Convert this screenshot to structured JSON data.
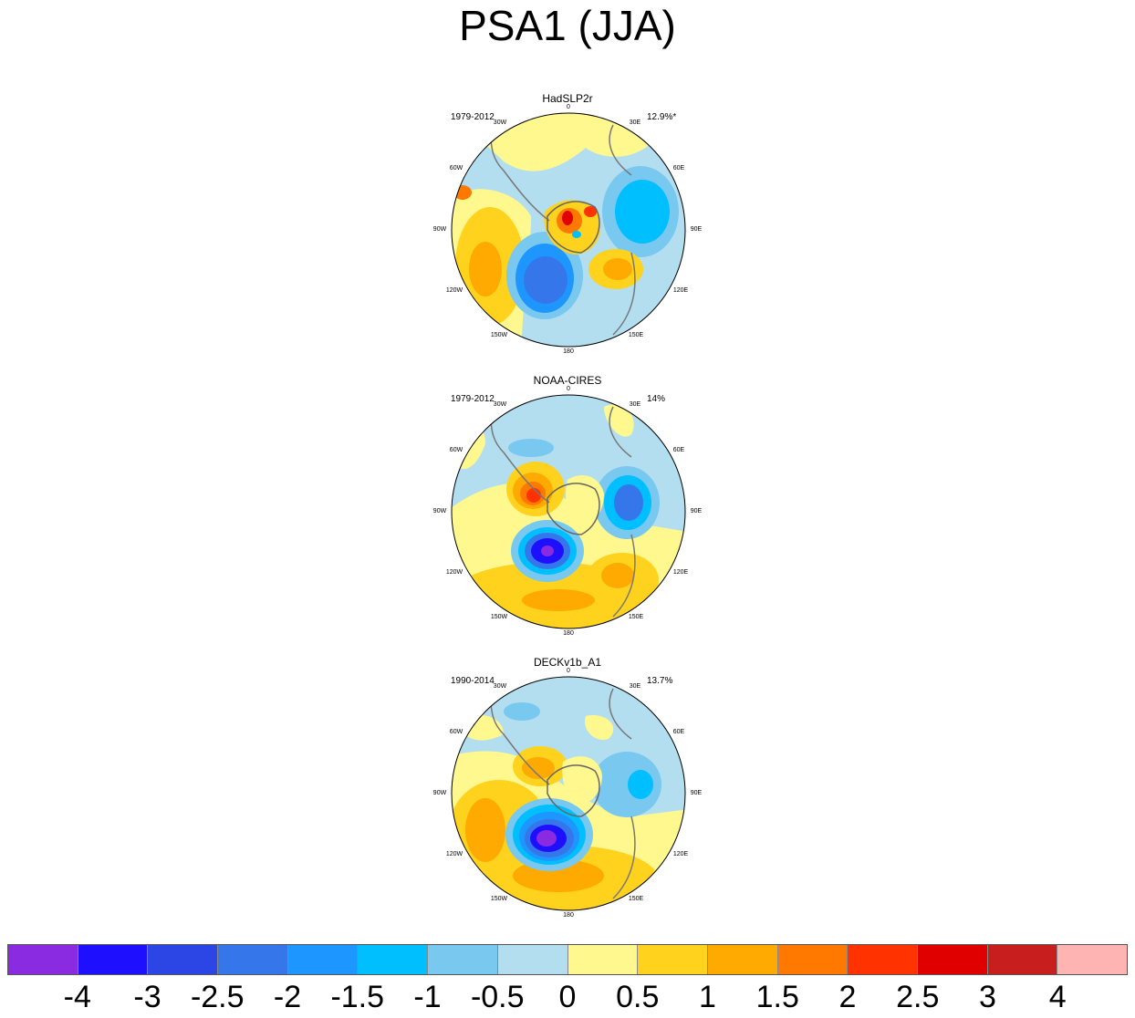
{
  "title": "PSA1 (JJA)",
  "panels": [
    {
      "name": "HadSLP2r",
      "years": "1979-2012",
      "pct": "12.9%*"
    },
    {
      "name": "NOAA-CIRES",
      "years": "1979-2012",
      "pct": "14%"
    },
    {
      "name": "DECKv1b_A1",
      "years": "1990-2014",
      "pct": "13.7%"
    }
  ],
  "lon_labels": {
    "l0": "0",
    "l30e": "30E",
    "l60e": "60E",
    "l90e": "90E",
    "l120e": "120E",
    "l150e": "150E",
    "l180": "180",
    "l150w": "150W",
    "l120w": "120W",
    "l90w": "90W",
    "l60w": "60W",
    "l30w": "30W"
  },
  "colorbar": {
    "colors": [
      "#8a2be2",
      "#1e0fff",
      "#2c46e6",
      "#3577ea",
      "#1e96ff",
      "#00bfff",
      "#78c8f0",
      "#b3def0",
      "#fff88e",
      "#ffd21e",
      "#ffaa00",
      "#ff7800",
      "#ff3200",
      "#e10000",
      "#c81e1e",
      "#ffb4b4"
    ],
    "labels": [
      "-4",
      "-3",
      "-2.5",
      "-2",
      "-1.5",
      "-1",
      "-0.5",
      "0",
      "0.5",
      "1",
      "1.5",
      "2",
      "2.5",
      "3",
      "4"
    ]
  }
}
